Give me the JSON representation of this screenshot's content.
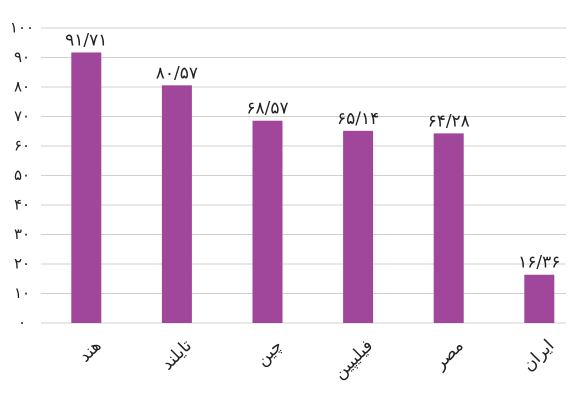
{
  "chart_data": {
    "type": "bar",
    "categories": [
      "هند",
      "تایلند",
      "چین",
      "فیلیپین",
      "مصر",
      "ایران"
    ],
    "values": [
      91.71,
      80.57,
      68.57,
      65.14,
      64.28,
      16.36
    ],
    "value_labels": [
      "۹۱/۷۱",
      "۸۰/۵۷",
      "۶۸/۵۷",
      "۶۵/۱۴",
      "۶۴/۲۸",
      "۱۶/۳۶"
    ],
    "color": "#a0479c",
    "ylim": [
      0,
      100
    ],
    "yticks": [
      {
        "value": 0,
        "label": "۰"
      },
      {
        "value": 10,
        "label": "۱۰"
      },
      {
        "value": 20,
        "label": "۲۰"
      },
      {
        "value": 30,
        "label": "۳۰"
      },
      {
        "value": 40,
        "label": "۴۰"
      },
      {
        "value": 50,
        "label": "۵۰"
      },
      {
        "value": 60,
        "label": "۶۰"
      },
      {
        "value": 70,
        "label": "۷۰"
      },
      {
        "value": 80,
        "label": "۸۰"
      },
      {
        "value": 90,
        "label": "۹۰"
      },
      {
        "value": 100,
        "label": "۱۰۰"
      }
    ],
    "grid": true
  }
}
